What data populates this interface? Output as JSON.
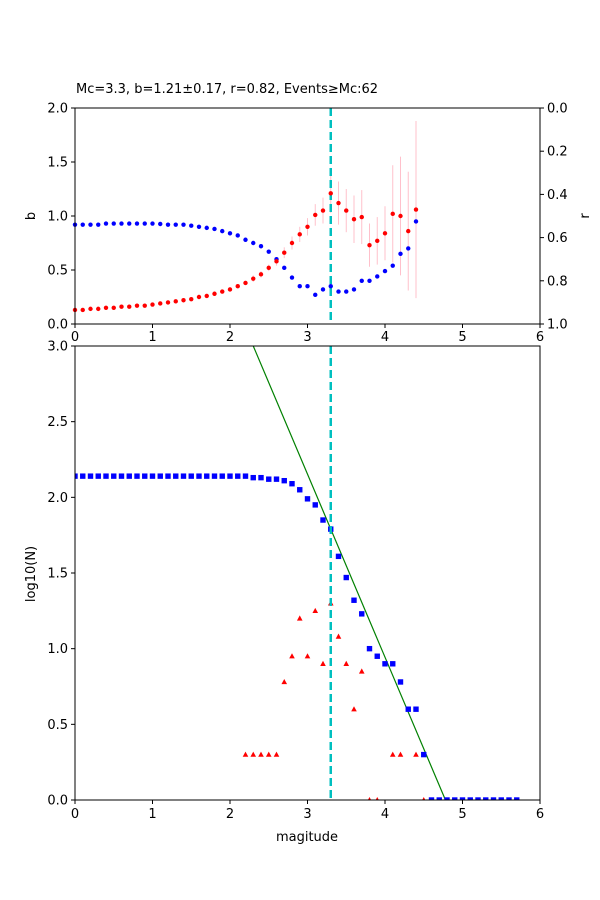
{
  "chart_data": [
    {
      "type": "scatter",
      "title": "Mc=3.3, b=1.21±0.17, r=0.82, Events≥Mc:62",
      "xlabel": "",
      "ylabel": "b",
      "ylabel_right": "r",
      "xlim": [
        0,
        6
      ],
      "ylim": [
        0,
        2
      ],
      "ylim_right": [
        1,
        0
      ],
      "x_ticks": [
        "0",
        "1",
        "2",
        "3",
        "4",
        "5",
        "6"
      ],
      "y_ticks": [
        "0.0",
        "0.5",
        "1.0",
        "1.5",
        "2.0"
      ],
      "y_ticks_right": [
        "1.0",
        "0.8",
        "0.6",
        "0.4",
        "0.2",
        "0.0"
      ],
      "grid": false,
      "mc_line": 3.3,
      "colors": {
        "b": "#ff0000",
        "r": "#0000ff",
        "errorbar": "#ffc0cb",
        "mc": "#00bfbf"
      },
      "series": [
        {
          "name": "b",
          "axis": "left",
          "x": [
            0.0,
            0.1,
            0.2,
            0.3,
            0.4,
            0.5,
            0.6,
            0.7,
            0.8,
            0.9,
            1.0,
            1.1,
            1.2,
            1.3,
            1.4,
            1.5,
            1.6,
            1.7,
            1.8,
            1.9,
            2.0,
            2.1,
            2.2,
            2.3,
            2.4,
            2.5,
            2.6,
            2.7,
            2.8,
            2.9,
            3.0,
            3.1,
            3.2,
            3.3,
            3.4,
            3.5,
            3.6,
            3.7,
            3.8,
            3.9,
            4.0,
            4.1,
            4.2,
            4.3,
            4.4
          ],
          "values": [
            0.13,
            0.13,
            0.14,
            0.14,
            0.15,
            0.15,
            0.16,
            0.16,
            0.17,
            0.17,
            0.18,
            0.19,
            0.2,
            0.21,
            0.22,
            0.23,
            0.25,
            0.26,
            0.28,
            0.3,
            0.32,
            0.35,
            0.38,
            0.42,
            0.46,
            0.52,
            0.58,
            0.66,
            0.75,
            0.83,
            0.9,
            1.01,
            1.05,
            1.21,
            1.12,
            1.05,
            0.97,
            0.99,
            0.73,
            0.77,
            0.84,
            1.02,
            1.0,
            0.86,
            1.06
          ],
          "errors": [
            0.01,
            0.01,
            0.01,
            0.01,
            0.01,
            0.01,
            0.01,
            0.01,
            0.01,
            0.01,
            0.01,
            0.01,
            0.01,
            0.01,
            0.01,
            0.01,
            0.01,
            0.02,
            0.02,
            0.02,
            0.02,
            0.02,
            0.02,
            0.03,
            0.03,
            0.03,
            0.04,
            0.05,
            0.06,
            0.07,
            0.08,
            0.1,
            0.12,
            0.18,
            0.2,
            0.2,
            0.22,
            0.25,
            0.2,
            0.22,
            0.25,
            0.45,
            0.55,
            0.55,
            0.82
          ]
        },
        {
          "name": "r",
          "axis": "right",
          "x": [
            0.0,
            0.1,
            0.2,
            0.3,
            0.4,
            0.5,
            0.6,
            0.7,
            0.8,
            0.9,
            1.0,
            1.1,
            1.2,
            1.3,
            1.4,
            1.5,
            1.6,
            1.7,
            1.8,
            1.9,
            2.0,
            2.1,
            2.2,
            2.3,
            2.4,
            2.5,
            2.6,
            2.7,
            2.8,
            2.9,
            3.0,
            3.1,
            3.2,
            3.3,
            3.4,
            3.5,
            3.6,
            3.7,
            3.8,
            3.9,
            4.0,
            4.1,
            4.2,
            4.3,
            4.4
          ],
          "values": [
            0.54,
            0.54,
            0.54,
            0.54,
            0.535,
            0.535,
            0.535,
            0.535,
            0.535,
            0.535,
            0.535,
            0.537,
            0.54,
            0.54,
            0.54,
            0.545,
            0.55,
            0.555,
            0.56,
            0.57,
            0.58,
            0.59,
            0.61,
            0.625,
            0.64,
            0.665,
            0.7,
            0.74,
            0.785,
            0.825,
            0.825,
            0.865,
            0.84,
            0.825,
            0.85,
            0.85,
            0.84,
            0.8,
            0.8,
            0.78,
            0.755,
            0.73,
            0.675,
            0.65,
            0.525
          ]
        }
      ]
    },
    {
      "type": "scatter",
      "title": "",
      "xlabel": "magitude",
      "ylabel": "log10(N)",
      "xlim": [
        0,
        6
      ],
      "ylim": [
        0,
        3
      ],
      "x_ticks": [
        "0",
        "1",
        "2",
        "3",
        "4",
        "5",
        "6"
      ],
      "y_ticks": [
        "0.0",
        "0.5",
        "1.0",
        "1.5",
        "2.0",
        "2.5",
        "3.0"
      ],
      "grid": false,
      "mc_line": 3.3,
      "fit_line": {
        "x": [
          2.3,
          4.78
        ],
        "y": [
          3.0,
          0.0
        ],
        "color": "#008000"
      },
      "colors": {
        "cumulative": "#0000ff",
        "noncumulative": "#ff0000",
        "mc": "#00bfbf"
      },
      "series": [
        {
          "name": "cumulative",
          "marker": "square",
          "x": [
            0.0,
            0.1,
            0.2,
            0.3,
            0.4,
            0.5,
            0.6,
            0.7,
            0.8,
            0.9,
            1.0,
            1.1,
            1.2,
            1.3,
            1.4,
            1.5,
            1.6,
            1.7,
            1.8,
            1.9,
            2.0,
            2.1,
            2.2,
            2.3,
            2.4,
            2.5,
            2.6,
            2.7,
            2.8,
            2.9,
            3.0,
            3.1,
            3.2,
            3.3,
            3.4,
            3.5,
            3.6,
            3.7,
            3.8,
            3.9,
            4.0,
            4.1,
            4.2,
            4.3,
            4.4,
            4.5,
            4.6,
            4.7,
            4.8,
            4.9,
            5.0,
            5.1,
            5.2,
            5.3,
            5.4,
            5.5,
            5.6,
            5.7
          ],
          "values": [
            2.14,
            2.14,
            2.14,
            2.14,
            2.14,
            2.14,
            2.14,
            2.14,
            2.14,
            2.14,
            2.14,
            2.14,
            2.14,
            2.14,
            2.14,
            2.14,
            2.14,
            2.14,
            2.14,
            2.14,
            2.14,
            2.14,
            2.14,
            2.13,
            2.13,
            2.12,
            2.12,
            2.11,
            2.09,
            2.05,
            1.99,
            1.95,
            1.85,
            1.79,
            1.61,
            1.47,
            1.32,
            1.23,
            1.0,
            0.95,
            0.9,
            0.9,
            0.78,
            0.6,
            0.6,
            0.3,
            0.0,
            0.0,
            0.0,
            0.0,
            0.0,
            0.0,
            0.0,
            0.0,
            0.0,
            0.0,
            0.0,
            0.0
          ]
        },
        {
          "name": "noncumulative",
          "marker": "triangle",
          "x": [
            2.2,
            2.3,
            2.4,
            2.5,
            2.6,
            2.7,
            2.8,
            2.9,
            3.0,
            3.1,
            3.2,
            3.3,
            3.4,
            3.5,
            3.6,
            3.7,
            3.8,
            3.9,
            4.1,
            4.2,
            4.4,
            4.5
          ],
          "values": [
            0.3,
            0.3,
            0.3,
            0.3,
            0.3,
            0.78,
            0.95,
            1.2,
            0.95,
            1.25,
            0.9,
            1.3,
            1.08,
            0.9,
            0.6,
            0.85,
            0.0,
            0.0,
            0.3,
            0.3,
            0.3,
            0.0
          ]
        }
      ]
    }
  ]
}
